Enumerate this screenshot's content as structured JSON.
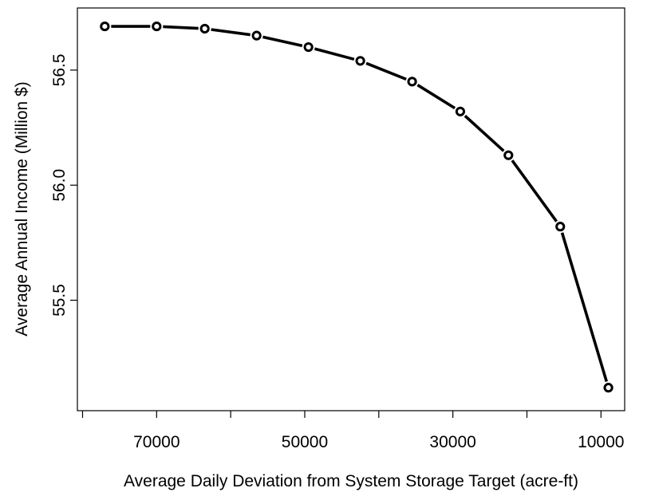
{
  "chart_data": {
    "type": "line",
    "title": "",
    "xlabel": "Average Daily Deviation from System Storage Target (acre-ft)",
    "ylabel": "Average Annual Income (Million $)",
    "x_reversed": true,
    "xlim": [
      80700,
      6800
    ],
    "ylim": [
      55.02,
      56.77
    ],
    "x_ticks": [
      80000,
      70000,
      60000,
      50000,
      40000,
      30000,
      20000,
      10000
    ],
    "x_tick_labels": [
      "",
      "70000",
      "",
      "50000",
      "",
      "30000",
      "",
      "10000"
    ],
    "y_ticks": [
      55.0,
      55.5,
      56.0,
      56.5
    ],
    "y_tick_labels": [
      "",
      "55.5",
      "56.0",
      "56.5"
    ],
    "grid": false,
    "legend": "none",
    "line_color": "#000000",
    "marker": "open-circle",
    "series": [
      {
        "x": [
          77000,
          70000,
          63500,
          56500,
          49500,
          42500,
          35500,
          29000,
          22500,
          15500,
          9000
        ],
        "values": [
          56.69,
          56.69,
          56.68,
          56.65,
          56.6,
          56.54,
          56.45,
          56.32,
          56.13,
          55.82,
          55.12
        ]
      }
    ]
  }
}
